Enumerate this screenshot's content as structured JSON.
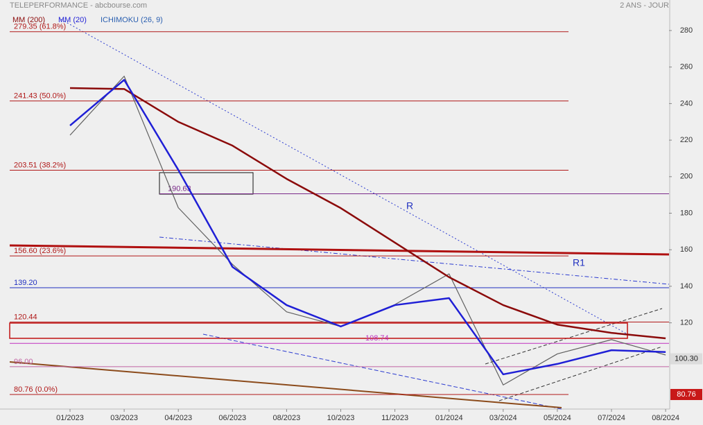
{
  "chart_data": {
    "type": "line",
    "title": "TELEPERFORMANCE - abcbourse.com",
    "period": "2 ANS - JOUR",
    "categories": [
      "01/2023",
      "03/2023",
      "04/2023",
      "06/2023",
      "08/2023",
      "10/2023",
      "11/2023",
      "01/2024",
      "03/2024",
      "05/2024",
      "07/2024",
      "08/2024"
    ],
    "series": [
      {
        "color": "#606060",
        "values": [
          222.7,
          255,
          183,
          152,
          126,
          118,
          130,
          146.8,
          86,
          103,
          110.8,
          102.4
        ]
      },
      {
        "name": "MM (200)",
        "color": "#8b0a0a",
        "values": [
          248.5,
          248,
          230,
          217,
          198.8,
          182.8,
          163.9,
          145,
          129.7,
          119,
          114.5,
          111.5
        ]
      },
      {
        "name": "MM (20)",
        "color": "#1f1fd6",
        "values": [
          228,
          253,
          203.7,
          150.6,
          129.7,
          118,
          129.7,
          133.5,
          91.8,
          97.5,
          105,
          104
        ]
      }
    ],
    "indicator": {
      "name": "ICHIMOKU (26, 9)",
      "color": "#2a5fb0"
    },
    "levels": [
      {
        "value": 279.35,
        "label": "279.35  (61.8%)",
        "color": "#b01818"
      },
      {
        "value": 241.43,
        "label": "241.43  (50.0%)",
        "color": "#b01818"
      },
      {
        "value": 203.51,
        "label": "203.51  (38.2%)",
        "color": "#b01818"
      },
      {
        "value": 190.63,
        "label": "190.63",
        "color": "#7a2a8a"
      },
      {
        "value": 156.6,
        "label": "156.60  (23.6%)",
        "color": "#b01818"
      },
      {
        "value": 139.2,
        "label": "139.20",
        "color": "#1f2fc0"
      },
      {
        "value": 120.44,
        "label": "120.44",
        "color": "#b01818"
      },
      {
        "value": 108.74,
        "label": "108.74",
        "color": "#c030c0"
      },
      {
        "value": 96,
        "label": "96.00",
        "color": "#c060a0"
      },
      {
        "value": 80.76,
        "label": "80.76  (0.0%)",
        "color": "#b01818"
      }
    ],
    "tags": [
      {
        "value": 100.3,
        "label": "100.30",
        "color": "#dcdcdc"
      },
      {
        "value": 80.76,
        "label": "80.76",
        "color": "#c81818"
      }
    ],
    "trend_labels": [
      "R",
      "R1"
    ],
    "ylim": [
      72.8,
      294.8
    ],
    "yticks": [
      120,
      140,
      160,
      180,
      200,
      220,
      240,
      260,
      280
    ]
  }
}
